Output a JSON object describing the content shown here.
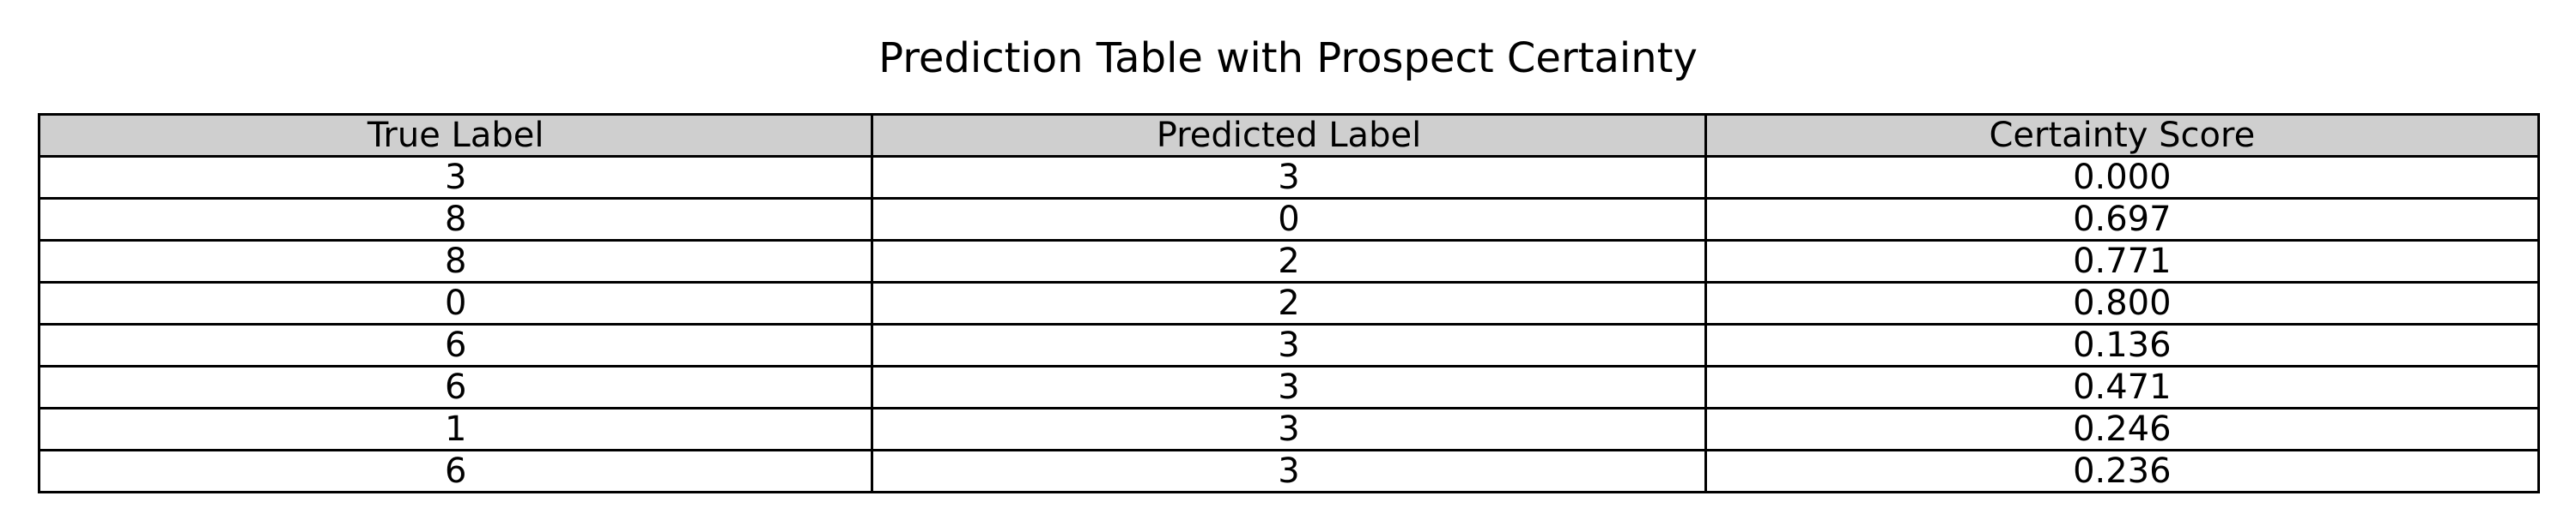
{
  "chart_data": {
    "type": "table",
    "title": "Prediction Table with Prospect Certainty",
    "columns": [
      "True Label",
      "Predicted Label",
      "Certainty Score"
    ],
    "rows": [
      [
        "3",
        "3",
        "0.000"
      ],
      [
        "8",
        "0",
        "0.697"
      ],
      [
        "8",
        "2",
        "0.771"
      ],
      [
        "0",
        "2",
        "0.800"
      ],
      [
        "6",
        "3",
        "0.136"
      ],
      [
        "6",
        "3",
        "0.471"
      ],
      [
        "1",
        "3",
        "0.246"
      ],
      [
        "6",
        "3",
        "0.236"
      ]
    ],
    "header_color": "#cfcfcf",
    "cell_color": "#ffffff",
    "border_color": "#000000"
  }
}
